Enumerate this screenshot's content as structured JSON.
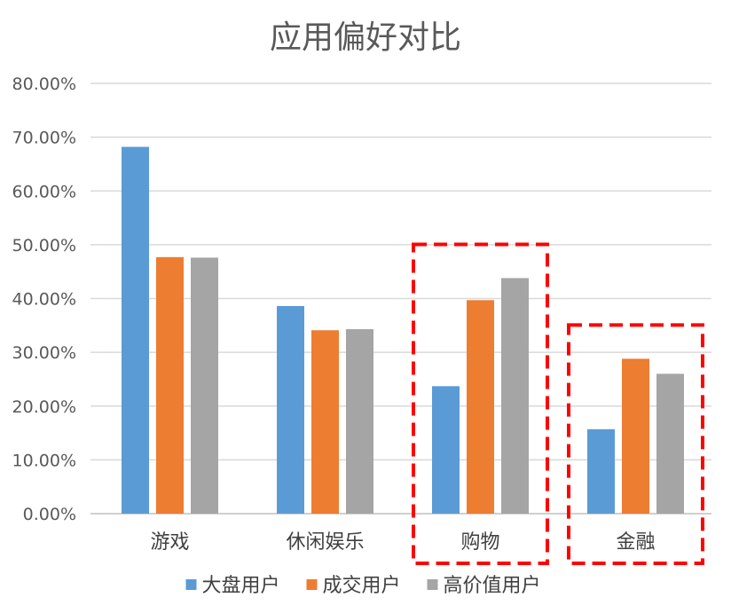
{
  "chart_data": {
    "type": "bar",
    "title": "应用偏好对比",
    "categories": [
      "游戏",
      "休闲娱乐",
      "购物",
      "金融"
    ],
    "series": [
      {
        "name": "大盘用户",
        "color": "#5b9bd5",
        "values": [
          68.2,
          38.6,
          23.7,
          15.7
        ]
      },
      {
        "name": "成交用户",
        "color": "#ed7d31",
        "values": [
          47.7,
          34.1,
          39.7,
          28.8
        ]
      },
      {
        "name": "高价值用户",
        "color": "#a5a5a5",
        "values": [
          47.6,
          34.3,
          43.8,
          26.0
        ]
      }
    ],
    "y_ticks": [
      "0.00%",
      "10.00%",
      "20.00%",
      "30.00%",
      "40.00%",
      "50.00%",
      "60.00%",
      "70.00%",
      "80.00%"
    ],
    "ylim": [
      0,
      80
    ],
    "y_unit": "percent",
    "grid": true,
    "legend": "bottom",
    "highlighted_categories": [
      "购物",
      "金融"
    ],
    "highlight_color": "#ff0000"
  }
}
